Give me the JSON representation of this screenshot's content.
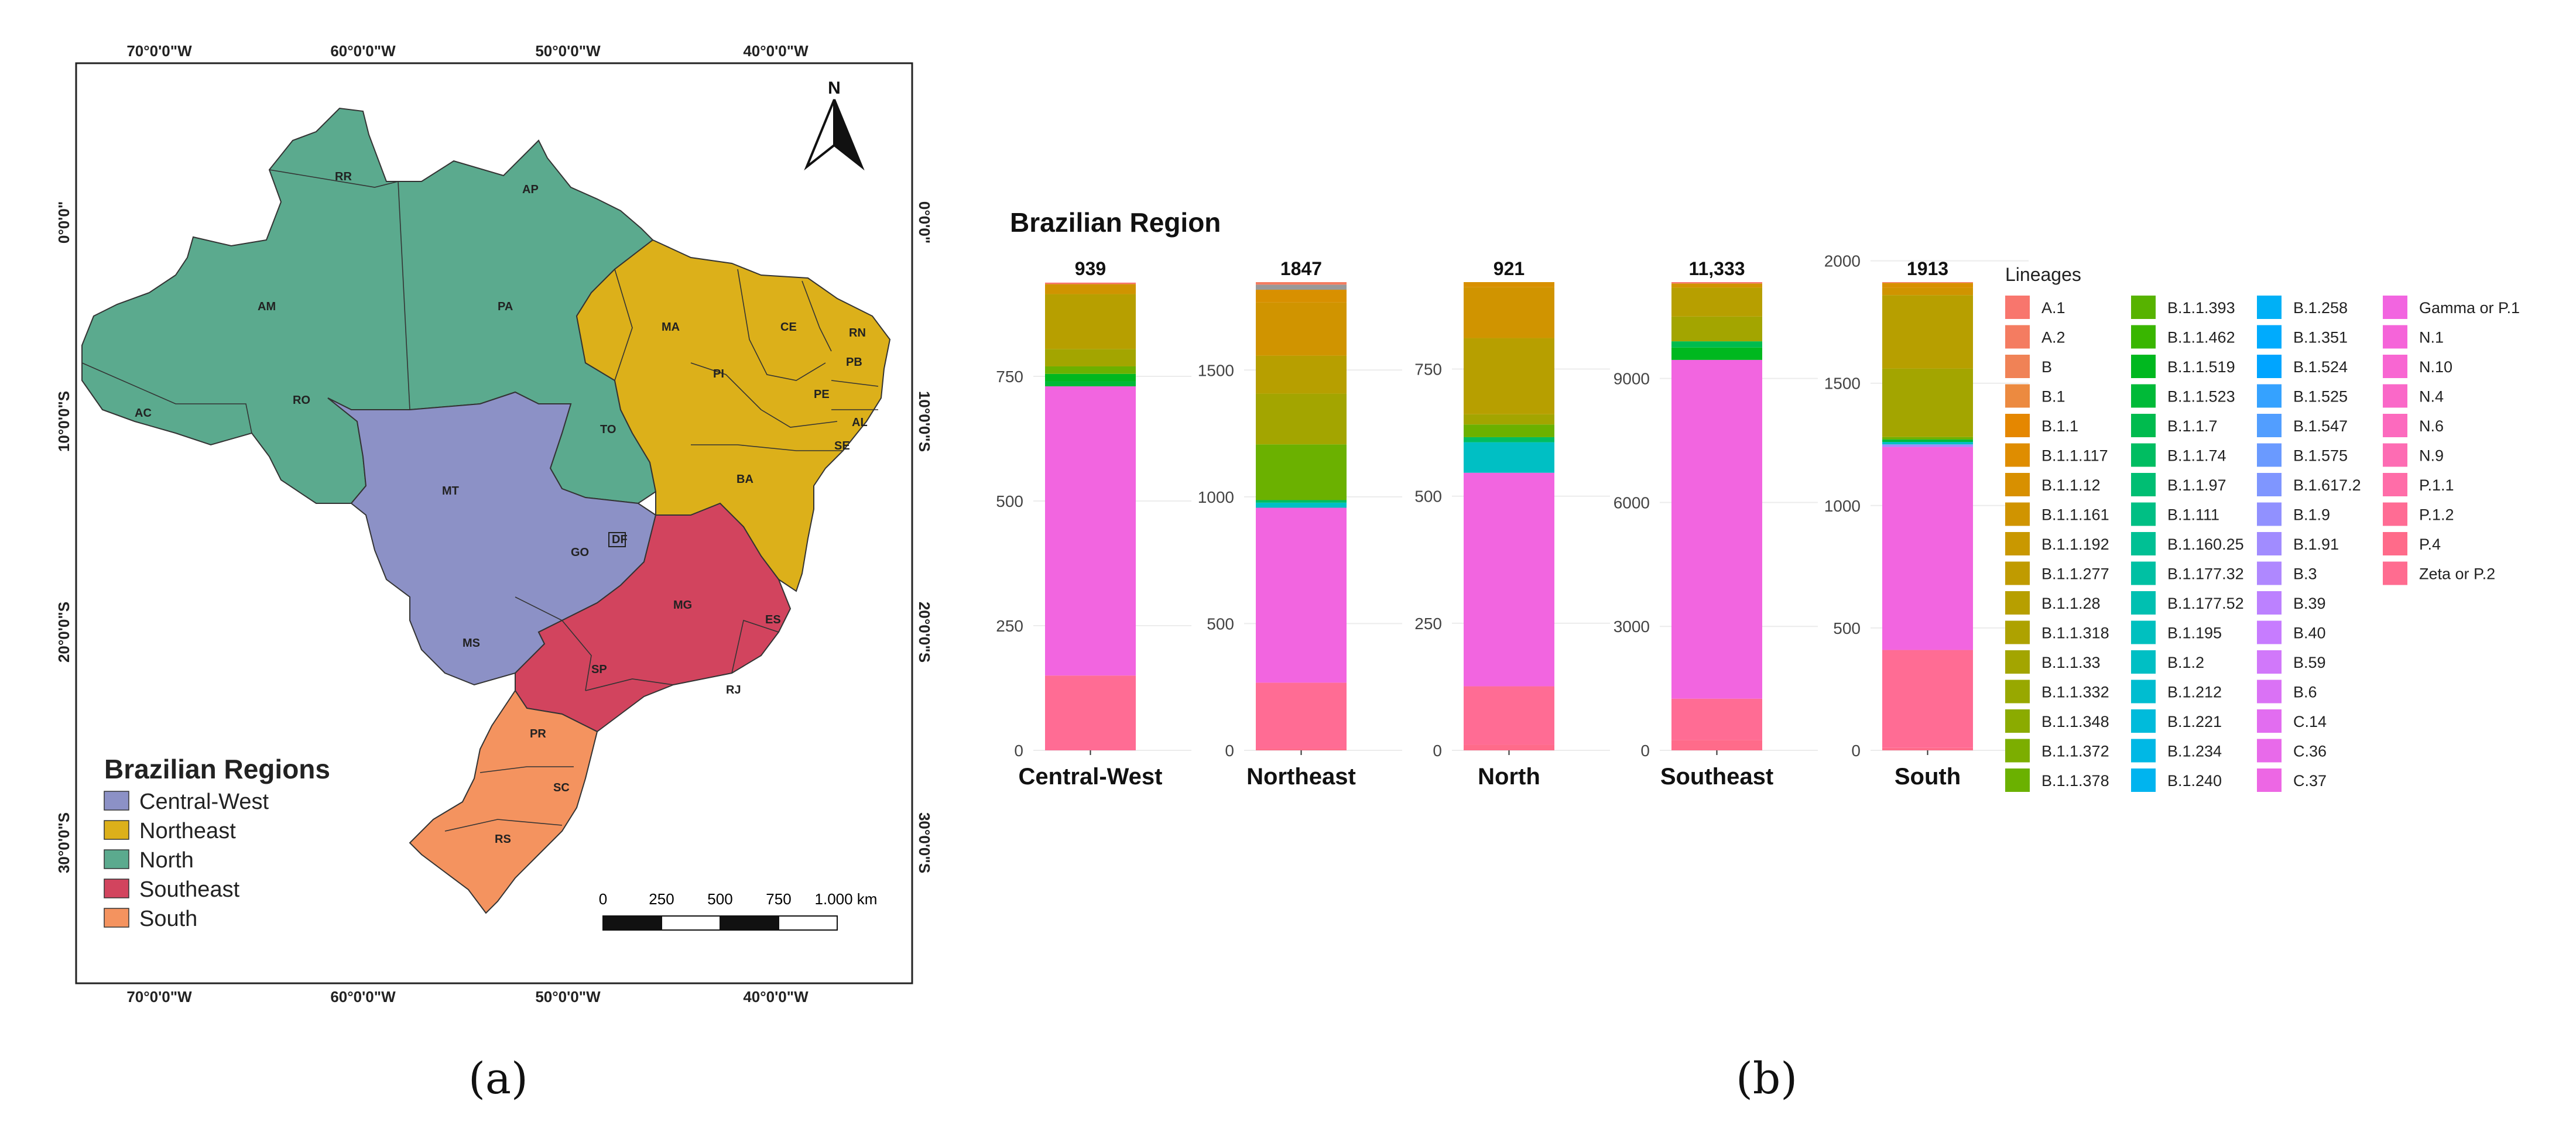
{
  "map": {
    "coords_top": [
      "70°0'0\"W",
      "60°0'0\"W",
      "50°0'0\"W",
      "40°0'0\"W"
    ],
    "coords_bottom": [
      "70°0'0\"W",
      "60°0'0\"W",
      "50°0'0\"W",
      "40°0'0\"W"
    ],
    "coords_left": [
      "0°0'0\"",
      "10°0'0\"S",
      "20°0'0\"S",
      "30°0'0\"S"
    ],
    "coords_right": [
      "0°0'0\"",
      "10°0'0\"S",
      "20°0'0\"S",
      "30°0'0\"S"
    ],
    "north_label": "N",
    "states": [
      "RR",
      "AP",
      "AM",
      "PA",
      "MA",
      "CE",
      "RN",
      "PB",
      "PI",
      "PE",
      "AL",
      "SE",
      "AC",
      "RO",
      "TO",
      "BA",
      "MT",
      "DF",
      "GO",
      "MG",
      "ES",
      "MS",
      "SP",
      "RJ",
      "PR",
      "SC",
      "RS"
    ],
    "legend_title": "Brazilian Regions",
    "legend": [
      {
        "label": "Central-West",
        "color": "#8C91C6"
      },
      {
        "label": "Northeast",
        "color": "#DCB01A"
      },
      {
        "label": "North",
        "color": "#5BAA8E"
      },
      {
        "label": "Southeast",
        "color": "#D2445E"
      },
      {
        "label": "South",
        "color": "#F4935F"
      }
    ],
    "scale_labels": [
      "0",
      "250",
      "500",
      "750",
      "1.000 km"
    ]
  },
  "captions": {
    "a": "(a)",
    "b": "(b)"
  },
  "chart_data": {
    "type": "bar",
    "stacked": true,
    "title": "Brazilian Region",
    "legend_title": "Lineages",
    "legend_position": "right",
    "facets": [
      {
        "category": "Central-West",
        "total_label": "939",
        "ylim": [
          0,
          939
        ],
        "ticks": [
          0,
          250,
          500,
          750
        ],
        "values": {
          "P.1": 580,
          "B.1.1.378": 15,
          "B.1.1.28": 110,
          "B.1.1.33": 35,
          "B.1.1.161": 20,
          "B.1.1.519": 15,
          "B.1.1.523": 10,
          "A.1": 3,
          "P.1.2": 150
        }
      },
      {
        "category": "Northeast",
        "total_label": "1847",
        "ylim": [
          0,
          1847
        ],
        "ticks": [
          0,
          500,
          1000,
          1500
        ],
        "values": {
          "P.1": 690,
          "B.1.1.378": 220,
          "B.1.1.28": 150,
          "B.1.1.161": 210,
          "B.1.1.33": 200,
          "B.1.1.12": 50,
          "B.1.1.74": 10,
          "B.1.2": 20,
          "B.1.1.1": 20,
          "A.2": 10,
          "P.1.2": 260,
          "P.4": 7
        }
      },
      {
        "category": "North",
        "total_label": "921",
        "ylim": [
          0,
          921
        ],
        "ticks": [
          0,
          250,
          500,
          750
        ],
        "values": {
          "P.1": 420,
          "B.1.1.28": 150,
          "B.1.1.161": 100,
          "B.1.2": 60,
          "B.1.1.378": 25,
          "B.1.1.33": 20,
          "B.1.1.12": 10,
          "B.1.1.74": 10,
          "P.1.2": 115,
          "P.4": 11
        }
      },
      {
        "category": "Southeast",
        "total_label": "11,333",
        "ylim": [
          0,
          11333
        ],
        "ticks": [
          0,
          3000,
          6000,
          9000
        ],
        "values": {
          "P.1": 8200,
          "B.1.1.519": 300,
          "B.1.1.28": 700,
          "B.1.1.33": 600,
          "B.1.1.161": 100,
          "B.1.1.7": 150,
          "A.1": 33,
          "P.1.2": 1000,
          "P.4": 250
        }
      },
      {
        "category": "South",
        "total_label": "1913",
        "ylim": [
          0,
          1913
        ],
        "ticks": [
          0,
          500,
          1000,
          1500,
          2000
        ],
        "values": {
          "P.1": 830,
          "B.1.1.28": 300,
          "B.1.1.33": 280,
          "B.1.1.161": 30,
          "B.1.1.378": 10,
          "B.1.1.523": 10,
          "B.1.2": 10,
          "B.1.91": 10,
          "B.1.1.12": 20,
          "A.1": 3,
          "P.1.2": 400,
          "P.4": 10
        }
      }
    ],
    "stack_order": [
      "P.4",
      "P.1.2",
      "P.1",
      "B.1.91",
      "B.1.2",
      "B.1.1.523",
      "B.1.1.519",
      "B.1.1.74",
      "B.1.1.7",
      "B.1.1.378",
      "B.1.1.33",
      "B.1.1.28",
      "B.1.1.161",
      "B.1.1.12",
      "B.1.1.1",
      "A.2",
      "A.1"
    ],
    "lineages": [
      {
        "name": "A.1",
        "color": "#F8766D"
      },
      {
        "name": "A.2",
        "color": "#F47C61"
      },
      {
        "name": "B",
        "color": "#F08256"
      },
      {
        "name": "B.1",
        "color": "#EC8A40"
      },
      {
        "name": "B.1.1",
        "color": "#E58700"
      },
      {
        "name": "B.1.1.117",
        "color": "#DF8D00"
      },
      {
        "name": "B.1.1.12",
        "color": "#D89000"
      },
      {
        "name": "B.1.1.161",
        "color": "#D09400"
      },
      {
        "name": "B.1.1.192",
        "color": "#C99800"
      },
      {
        "name": "B.1.1.277",
        "color": "#C09B00"
      },
      {
        "name": "B.1.1.28",
        "color": "#B79F00"
      },
      {
        "name": "B.1.1.318",
        "color": "#AEA200"
      },
      {
        "name": "B.1.1.33",
        "color": "#A3A500"
      },
      {
        "name": "B.1.1.332",
        "color": "#98A800"
      },
      {
        "name": "B.1.1.348",
        "color": "#8BAB00"
      },
      {
        "name": "B.1.1.372",
        "color": "#7CAE00"
      },
      {
        "name": "B.1.1.378",
        "color": "#6BB100"
      },
      {
        "name": "B.1.1.393",
        "color": "#57B300"
      },
      {
        "name": "B.1.1.462",
        "color": "#39B600"
      },
      {
        "name": "B.1.1.519",
        "color": "#00B81F"
      },
      {
        "name": "B.1.1.523",
        "color": "#00BA38"
      },
      {
        "name": "B.1.1.7",
        "color": "#00BB4E"
      },
      {
        "name": "B.1.1.74",
        "color": "#00BD61"
      },
      {
        "name": "B.1.1.97",
        "color": "#00BE73"
      },
      {
        "name": "B.1.111",
        "color": "#00BF84"
      },
      {
        "name": "B.1.160.25",
        "color": "#00C094"
      },
      {
        "name": "B.1.177.32",
        "color": "#00C0A3"
      },
      {
        "name": "B.1.177.52",
        "color": "#00C0B1"
      },
      {
        "name": "B.1.195",
        "color": "#00C0BF"
      },
      {
        "name": "B.1.2",
        "color": "#00BFC4"
      },
      {
        "name": "B.1.212",
        "color": "#00BDD0"
      },
      {
        "name": "B.1.221",
        "color": "#00BBDB"
      },
      {
        "name": "B.1.234",
        "color": "#00B8E5"
      },
      {
        "name": "B.1.240",
        "color": "#00B4EF"
      },
      {
        "name": "B.1.258",
        "color": "#00B0F6"
      },
      {
        "name": "B.1.351",
        "color": "#00ABFD"
      },
      {
        "name": "B.1.524",
        "color": "#00A5FF"
      },
      {
        "name": "B.1.525",
        "color": "#35A2FF"
      },
      {
        "name": "B.1.547",
        "color": "#529EFF"
      },
      {
        "name": "B.1.575",
        "color": "#6A9AFF"
      },
      {
        "name": "B.1.617.2",
        "color": "#7F96FF"
      },
      {
        "name": "B.1.9",
        "color": "#9191FF"
      },
      {
        "name": "B.1.91",
        "color": "#A18CFF"
      },
      {
        "name": "B.3",
        "color": "#AF88FF"
      },
      {
        "name": "B.39",
        "color": "#BC81FF"
      },
      {
        "name": "B.40",
        "color": "#C77CFF"
      },
      {
        "name": "B.59",
        "color": "#D178FA"
      },
      {
        "name": "B.6",
        "color": "#DA72F5"
      },
      {
        "name": "C.14",
        "color": "#E26DF0"
      },
      {
        "name": "C.36",
        "color": "#E86AEA"
      },
      {
        "name": "C.37",
        "color": "#ED67E4"
      },
      {
        "name": "Gamma or P.1",
        "color": "#F265E0",
        "key": "P.1"
      },
      {
        "name": "N.1",
        "color": "#F564D9"
      },
      {
        "name": "N.10",
        "color": "#F866D2"
      },
      {
        "name": "N.4",
        "color": "#FA68C8"
      },
      {
        "name": "N.6",
        "color": "#FC6ABE"
      },
      {
        "name": "N.9",
        "color": "#FD6CB3"
      },
      {
        "name": "P.1.1",
        "color": "#FF6DA8"
      },
      {
        "name": "P.1.2",
        "color": "#FF6C94"
      },
      {
        "name": "P.4",
        "color": "#FF6B8A"
      },
      {
        "name": "Zeta or P.2",
        "color": "#FF6C90"
      }
    ]
  }
}
